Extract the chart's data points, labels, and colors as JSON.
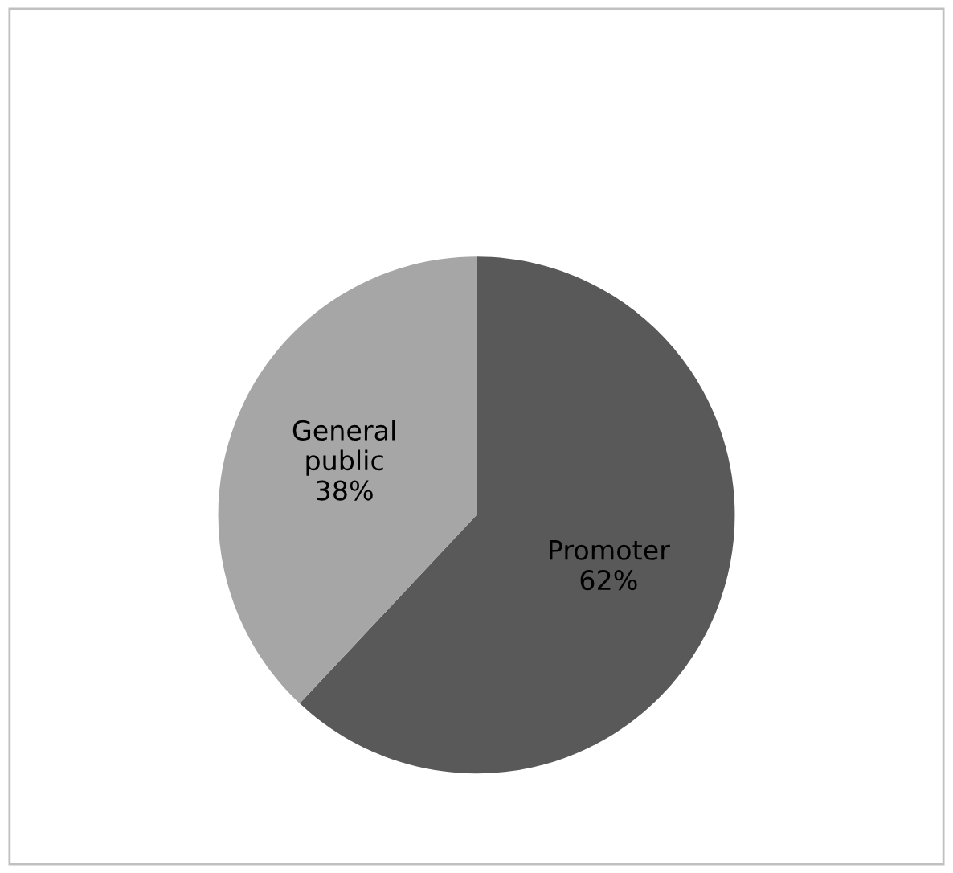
{
  "chart_data": {
    "type": "pie",
    "categories": [
      "Promoter",
      "General public"
    ],
    "values": [
      62,
      38
    ],
    "colors": [
      "#595959",
      "#a6a6a6"
    ],
    "value_labels": [
      "62%",
      "38%"
    ]
  }
}
